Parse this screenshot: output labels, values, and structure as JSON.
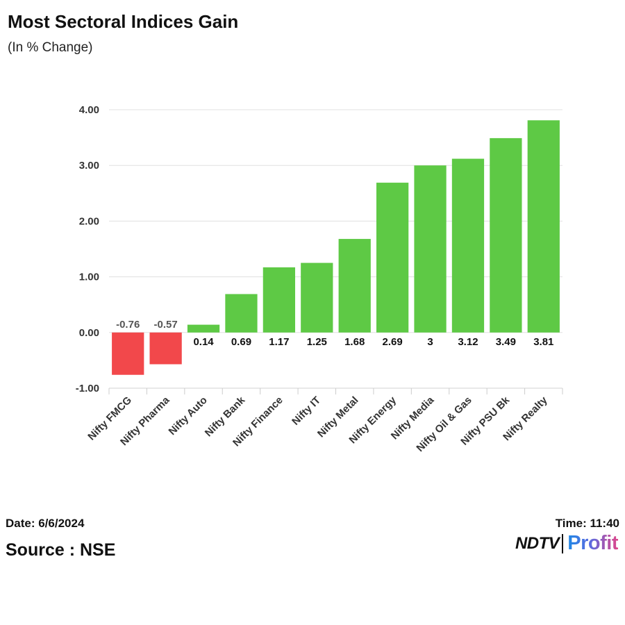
{
  "header": {
    "title": "Most Sectoral Indices Gain",
    "subtitle": "(In % Change)"
  },
  "footer": {
    "date": "Date: 6/6/2024",
    "source": "Source : NSE",
    "time": "Time: 11:40",
    "brand_ndtv": "NDTV",
    "brand_profit": "Profit"
  },
  "colors": {
    "positive": "#5ec945",
    "negative": "#f2484b",
    "grid": "#e0e0e0",
    "axis_text": "#333333"
  },
  "chart_data": {
    "type": "bar",
    "title": "Most Sectoral Indices Gain",
    "subtitle": "(In % Change)",
    "xlabel": "",
    "ylabel": "",
    "categories": [
      "Nifty FMCG",
      "Nifty Pharma",
      "Nifty Auto",
      "Nifty Bank",
      "Nifty Finance",
      "Nifty IT",
      "Nifty Metal",
      "Nifty Energy",
      "Nifty Media",
      "Nifty Oil & Gas",
      "Nifty PSU Bk",
      "Nifty Realty"
    ],
    "values": [
      -0.76,
      -0.57,
      0.14,
      0.69,
      1.17,
      1.25,
      1.68,
      2.69,
      3,
      3.12,
      3.49,
      3.81
    ],
    "data_labels": [
      "-0.76",
      "-0.57",
      "0.14",
      "0.69",
      "1.17",
      "1.25",
      "1.68",
      "2.69",
      "3",
      "3.12",
      "3.49",
      "3.81"
    ],
    "ylim": [
      -1,
      4
    ],
    "yticks": [
      4,
      3,
      2,
      1,
      0,
      -1
    ],
    "ytick_labels": [
      "4.00",
      "3.00",
      "2.00",
      "1.00",
      "0.00",
      "-1.00"
    ],
    "grid": true,
    "legend": "none"
  }
}
